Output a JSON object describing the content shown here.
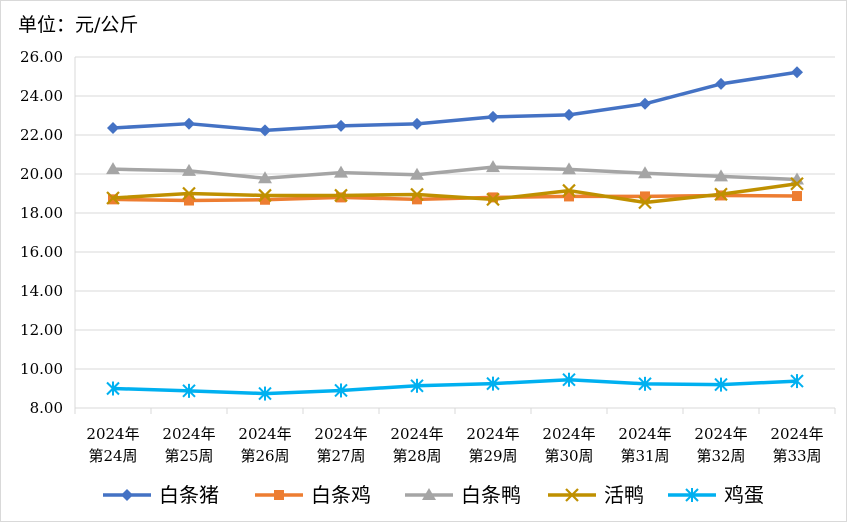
{
  "chart_data": {
    "type": "line",
    "unit_label": "单位：元/公斤",
    "categories": [
      [
        "2024年",
        "第24周"
      ],
      [
        "2024年",
        "第25周"
      ],
      [
        "2024年",
        "第26周"
      ],
      [
        "2024年",
        "第27周"
      ],
      [
        "2024年",
        "第28周"
      ],
      [
        "2024年",
        "第29周"
      ],
      [
        "2024年",
        "第30周"
      ],
      [
        "2024年",
        "第31周"
      ],
      [
        "2024年",
        "第32周"
      ],
      [
        "2024年",
        "第33周"
      ]
    ],
    "ylim": [
      8.0,
      26.0
    ],
    "ytick_step": 2.0,
    "ytick_labels": [
      "8.00",
      "10.00",
      "12.00",
      "14.00",
      "16.00",
      "18.00",
      "20.00",
      "22.00",
      "24.00",
      "26.00"
    ],
    "grid": true,
    "legend_position": "bottom",
    "series": [
      {
        "name": "白条猪",
        "color": "#4472c4",
        "marker": "diamond",
        "values": [
          22.36,
          22.58,
          22.24,
          22.47,
          22.57,
          22.93,
          23.03,
          23.6,
          24.62,
          25.22
        ]
      },
      {
        "name": "白条鸡",
        "color": "#ed7d31",
        "marker": "square",
        "values": [
          18.7,
          18.64,
          18.68,
          18.8,
          18.7,
          18.8,
          18.85,
          18.85,
          18.9,
          18.87
        ]
      },
      {
        "name": "白条鸭",
        "color": "#a5a5a5",
        "marker": "triangle",
        "values": [
          20.25,
          20.16,
          19.78,
          20.07,
          19.96,
          20.35,
          20.24,
          20.04,
          19.88,
          19.72
        ]
      },
      {
        "name": "活鸭",
        "color": "#bf9000",
        "marker": "x",
        "values": [
          18.77,
          19.0,
          18.9,
          18.9,
          18.95,
          18.7,
          19.15,
          18.54,
          18.96,
          19.5
        ]
      },
      {
        "name": "鸡蛋",
        "color": "#00b0f0",
        "marker": "star",
        "values": [
          9.0,
          8.88,
          8.74,
          8.9,
          9.14,
          9.25,
          9.45,
          9.24,
          9.2,
          9.38
        ]
      }
    ]
  }
}
